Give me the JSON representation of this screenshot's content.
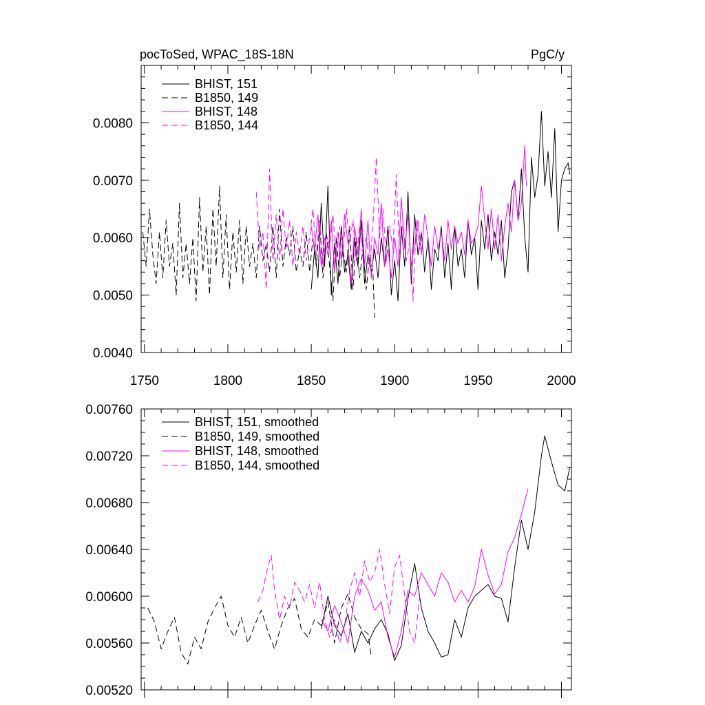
{
  "chart_data": [
    {
      "type": "line",
      "title": "pocToSed, WPAC_18S-18N",
      "units": "PgC/y",
      "xlim": [
        1748,
        2006
      ],
      "ylim": [
        0.004,
        0.009
      ],
      "yticks": [
        0.004,
        0.005,
        0.006,
        0.007,
        0.008
      ],
      "ytick_labels": [
        "0.0040",
        "0.0050",
        "0.0060",
        "0.0070",
        "0.0080"
      ],
      "xticks": [
        1750,
        1800,
        1850,
        1900,
        1950,
        2000
      ],
      "xtick_labels": [
        "1750",
        "1800",
        "1850",
        "1900",
        "1950",
        "2000"
      ],
      "legend_position": "top-left",
      "series": [
        {
          "name": "BHIST, 151",
          "color": "#000000",
          "dash": "solid",
          "x": [
            1850,
            1852,
            1854,
            1856,
            1858,
            1860,
            1862,
            1864,
            1866,
            1868,
            1870,
            1872,
            1874,
            1876,
            1878,
            1880,
            1882,
            1884,
            1886,
            1888,
            1890,
            1892,
            1894,
            1896,
            1898,
            1900,
            1902,
            1904,
            1906,
            1908,
            1910,
            1912,
            1914,
            1916,
            1918,
            1920,
            1922,
            1924,
            1926,
            1928,
            1930,
            1932,
            1934,
            1936,
            1938,
            1940,
            1942,
            1944,
            1946,
            1948,
            1950,
            1952,
            1954,
            1956,
            1958,
            1960,
            1962,
            1964,
            1966,
            1968,
            1970,
            1972,
            1974,
            1976,
            1978,
            1980,
            1982,
            1984,
            1986,
            1988,
            1990,
            1992,
            1994,
            1996,
            1998,
            2000,
            2002,
            2004,
            2005
          ],
          "y": [
            0.0051,
            0.0058,
            0.0053,
            0.0066,
            0.0055,
            0.0069,
            0.005,
            0.0059,
            0.0052,
            0.0062,
            0.0054,
            0.0057,
            0.0051,
            0.006,
            0.0055,
            0.0063,
            0.0052,
            0.0057,
            0.0054,
            0.0058,
            0.0053,
            0.006,
            0.0055,
            0.0062,
            0.005,
            0.0056,
            0.0049,
            0.0062,
            0.0055,
            0.0068,
            0.0052,
            0.0064,
            0.0057,
            0.0061,
            0.0054,
            0.006,
            0.0051,
            0.0058,
            0.0056,
            0.0062,
            0.0053,
            0.0059,
            0.0051,
            0.0062,
            0.0055,
            0.0058,
            0.0053,
            0.0063,
            0.0057,
            0.006,
            0.0051,
            0.0063,
            0.0058,
            0.0064,
            0.0056,
            0.0061,
            0.0057,
            0.0063,
            0.0053,
            0.0058,
            0.0068,
            0.007,
            0.0063,
            0.0072,
            0.006,
            0.0054,
            0.0074,
            0.0067,
            0.0071,
            0.0082,
            0.0069,
            0.0075,
            0.0067,
            0.0079,
            0.0061,
            0.007,
            0.0072,
            0.0073,
            0.0071
          ]
        },
        {
          "name": "B1850, 149",
          "color": "#000000",
          "dash": "dashed",
          "x": [
            1749,
            1751,
            1753,
            1755,
            1757,
            1759,
            1761,
            1763,
            1765,
            1767,
            1769,
            1771,
            1773,
            1775,
            1777,
            1779,
            1781,
            1783,
            1785,
            1787,
            1789,
            1791,
            1793,
            1795,
            1797,
            1799,
            1801,
            1803,
            1805,
            1807,
            1809,
            1811,
            1813,
            1815,
            1817,
            1819,
            1821,
            1823,
            1825,
            1827,
            1829,
            1831,
            1833,
            1835,
            1837,
            1839,
            1841,
            1843,
            1845,
            1847,
            1849,
            1851,
            1853,
            1855,
            1857,
            1859,
            1861,
            1863,
            1865,
            1867,
            1869,
            1871,
            1873,
            1875,
            1877,
            1879,
            1881,
            1883,
            1885,
            1887,
            1888
          ],
          "y": [
            0.0061,
            0.0055,
            0.0065,
            0.0057,
            0.0052,
            0.0061,
            0.0053,
            0.0063,
            0.0055,
            0.0059,
            0.005,
            0.0066,
            0.0053,
            0.0059,
            0.0052,
            0.006,
            0.0049,
            0.0067,
            0.0054,
            0.0062,
            0.005,
            0.0065,
            0.0055,
            0.0069,
            0.0053,
            0.0064,
            0.0051,
            0.0061,
            0.0054,
            0.0063,
            0.0052,
            0.0062,
            0.0055,
            0.0059,
            0.0053,
            0.0062,
            0.0056,
            0.0059,
            0.0054,
            0.0062,
            0.0053,
            0.0065,
            0.0055,
            0.006,
            0.0057,
            0.0062,
            0.0054,
            0.0058,
            0.0055,
            0.0061,
            0.0054,
            0.006,
            0.0055,
            0.0063,
            0.0053,
            0.0061,
            0.0055,
            0.0049,
            0.006,
            0.0053,
            0.0058,
            0.0054,
            0.0062,
            0.0051,
            0.006,
            0.0053,
            0.0058,
            0.0051,
            0.0057,
            0.0054,
            0.0046
          ]
        },
        {
          "name": "BHIST, 148",
          "color": "#ff00ff",
          "dash": "solid",
          "x": [
            1850,
            1852,
            1854,
            1856,
            1858,
            1860,
            1862,
            1864,
            1866,
            1868,
            1870,
            1872,
            1874,
            1876,
            1878,
            1880,
            1882,
            1884,
            1886,
            1888,
            1890,
            1892,
            1894,
            1896,
            1898,
            1900,
            1902,
            1904,
            1906,
            1908,
            1910,
            1912,
            1914,
            1916,
            1918,
            1920,
            1922,
            1924,
            1926,
            1928,
            1930,
            1932,
            1934,
            1936,
            1938,
            1940,
            1942,
            1944,
            1946,
            1948,
            1950,
            1952,
            1954,
            1956,
            1958,
            1960,
            1962,
            1964,
            1966,
            1968,
            1970,
            1972,
            1974,
            1976,
            1978,
            1979
          ],
          "y": [
            0.0062,
            0.0058,
            0.0064,
            0.0055,
            0.006,
            0.0057,
            0.0063,
            0.0054,
            0.0061,
            0.0056,
            0.0064,
            0.0059,
            0.0052,
            0.0062,
            0.0057,
            0.0065,
            0.0055,
            0.0063,
            0.0053,
            0.006,
            0.0057,
            0.0066,
            0.0055,
            0.0058,
            0.0053,
            0.006,
            0.0055,
            0.0067,
            0.0058,
            0.0064,
            0.0055,
            0.0059,
            0.0063,
            0.0057,
            0.0064,
            0.006,
            0.0055,
            0.0062,
            0.0058,
            0.0061,
            0.0056,
            0.0063,
            0.0058,
            0.0062,
            0.0059,
            0.0061,
            0.0057,
            0.0063,
            0.0059,
            0.006,
            0.0062,
            0.0069,
            0.0063,
            0.0058,
            0.0065,
            0.0058,
            0.0064,
            0.0056,
            0.0062,
            0.0066,
            0.0061,
            0.007,
            0.0063,
            0.0066,
            0.0076,
            0.0069
          ]
        },
        {
          "name": "B1850, 144",
          "color": "#ff00ff",
          "dash": "dashed",
          "x": [
            1817,
            1819,
            1821,
            1823,
            1825,
            1827,
            1829,
            1831,
            1833,
            1835,
            1837,
            1839,
            1841,
            1843,
            1845,
            1847,
            1849,
            1851,
            1853,
            1855,
            1857,
            1859,
            1861,
            1863,
            1865,
            1867,
            1869,
            1871,
            1873,
            1875,
            1877,
            1879,
            1881,
            1883,
            1885,
            1887,
            1889,
            1891,
            1893,
            1895,
            1897,
            1899,
            1901,
            1903,
            1905,
            1907,
            1909,
            1911,
            1913,
            1915,
            1916
          ],
          "y": [
            0.0068,
            0.0058,
            0.0061,
            0.0051,
            0.0072,
            0.0056,
            0.0064,
            0.0056,
            0.0065,
            0.0058,
            0.0063,
            0.0055,
            0.0061,
            0.0057,
            0.0062,
            0.0056,
            0.006,
            0.0065,
            0.0057,
            0.0063,
            0.0055,
            0.0061,
            0.0058,
            0.0064,
            0.0056,
            0.0062,
            0.0057,
            0.0065,
            0.0059,
            0.0063,
            0.0056,
            0.0062,
            0.0058,
            0.006,
            0.0055,
            0.0062,
            0.0074,
            0.006,
            0.0065,
            0.0056,
            0.0062,
            0.0058,
            0.0071,
            0.0057,
            0.0063,
            0.0056,
            0.0059,
            0.0049,
            0.0063,
            0.0058,
            0.0061
          ]
        }
      ]
    },
    {
      "type": "line",
      "title": "",
      "ylim": [
        0.0052,
        0.0076
      ],
      "xlim": [
        1748,
        2006
      ],
      "yticks": [
        0.0052,
        0.0056,
        0.006,
        0.0064,
        0.0068,
        0.0072,
        0.0076
      ],
      "ytick_labels": [
        "0.00520",
        "0.00560",
        "0.00600",
        "0.00640",
        "0.00680",
        "0.00720",
        "0.00760"
      ],
      "legend_position": "top-left",
      "series": [
        {
          "name": "BHIST, 151, smoothed",
          "color": "#000000",
          "dash": "solid",
          "x": [
            1856,
            1860,
            1864,
            1868,
            1872,
            1876,
            1880,
            1884,
            1888,
            1892,
            1896,
            1900,
            1904,
            1908,
            1912,
            1916,
            1920,
            1924,
            1928,
            1932,
            1936,
            1940,
            1944,
            1948,
            1952,
            1956,
            1960,
            1964,
            1968,
            1972,
            1976,
            1980,
            1984,
            1988,
            1990,
            1994,
            1998,
            2002,
            2005
          ],
          "y": [
            0.00572,
            0.006,
            0.00575,
            0.00566,
            0.00585,
            0.00552,
            0.0057,
            0.0056,
            0.00572,
            0.0058,
            0.00568,
            0.00545,
            0.00558,
            0.00598,
            0.00628,
            0.0059,
            0.0057,
            0.0056,
            0.00548,
            0.0055,
            0.0058,
            0.00565,
            0.0059,
            0.006,
            0.00605,
            0.0061,
            0.006,
            0.00598,
            0.00578,
            0.00625,
            0.00665,
            0.0064,
            0.00672,
            0.0072,
            0.00737,
            0.00715,
            0.00695,
            0.0069,
            0.0071
          ]
        },
        {
          "name": "B1850, 149, smoothed",
          "color": "#000000",
          "dash": "dashed",
          "x": [
            1752,
            1756,
            1760,
            1764,
            1768,
            1772,
            1776,
            1780,
            1784,
            1788,
            1792,
            1796,
            1800,
            1804,
            1808,
            1812,
            1816,
            1820,
            1824,
            1828,
            1832,
            1836,
            1840,
            1844,
            1848,
            1852,
            1856,
            1860,
            1864,
            1868,
            1872,
            1876,
            1880,
            1884,
            1886
          ],
          "y": [
            0.0059,
            0.00578,
            0.00555,
            0.0057,
            0.00582,
            0.00552,
            0.00542,
            0.00565,
            0.00555,
            0.00578,
            0.0059,
            0.006,
            0.00575,
            0.00565,
            0.00582,
            0.0056,
            0.00575,
            0.00588,
            0.0057,
            0.00555,
            0.00575,
            0.0059,
            0.00598,
            0.00572,
            0.00565,
            0.0058,
            0.00575,
            0.00595,
            0.0056,
            0.0059,
            0.00602,
            0.00582,
            0.00572,
            0.00568,
            0.00548
          ]
        },
        {
          "name": "BHIST, 148, smoothed",
          "color": "#ff00ff",
          "dash": "solid",
          "x": [
            1856,
            1860,
            1864,
            1868,
            1872,
            1876,
            1880,
            1884,
            1888,
            1892,
            1896,
            1900,
            1904,
            1908,
            1912,
            1916,
            1920,
            1924,
            1928,
            1932,
            1936,
            1940,
            1944,
            1948,
            1952,
            1956,
            1960,
            1964,
            1968,
            1972,
            1976,
            1980
          ],
          "y": [
            0.0058,
            0.0057,
            0.00592,
            0.00578,
            0.0056,
            0.006,
            0.00615,
            0.00605,
            0.00588,
            0.00595,
            0.00565,
            0.00548,
            0.0057,
            0.00605,
            0.006,
            0.0062,
            0.0061,
            0.006,
            0.0062,
            0.00612,
            0.00595,
            0.00605,
            0.00595,
            0.00608,
            0.0064,
            0.00618,
            0.00602,
            0.0061,
            0.00638,
            0.0065,
            0.0067,
            0.00692
          ]
        },
        {
          "name": "B1850, 144, smoothed",
          "color": "#ff00ff",
          "dash": "dashed",
          "x": [
            1818,
            1821,
            1824,
            1826,
            1828,
            1831,
            1834,
            1837,
            1840,
            1843,
            1846,
            1849,
            1852,
            1855,
            1858,
            1861,
            1864,
            1867,
            1870,
            1873,
            1876,
            1879,
            1882,
            1885,
            1888,
            1891,
            1894,
            1897,
            1900,
            1903,
            1906,
            1909,
            1912,
            1915
          ],
          "y": [
            0.00595,
            0.00605,
            0.00625,
            0.00635,
            0.00605,
            0.0058,
            0.006,
            0.0059,
            0.00612,
            0.00605,
            0.00595,
            0.0061,
            0.0059,
            0.00612,
            0.0058,
            0.00565,
            0.0058,
            0.0056,
            0.00575,
            0.00605,
            0.0062,
            0.006,
            0.0063,
            0.00612,
            0.0062,
            0.0064,
            0.0061,
            0.00585,
            0.00625,
            0.00635,
            0.006,
            0.0057,
            0.0056,
            0.006
          ]
        }
      ]
    }
  ]
}
